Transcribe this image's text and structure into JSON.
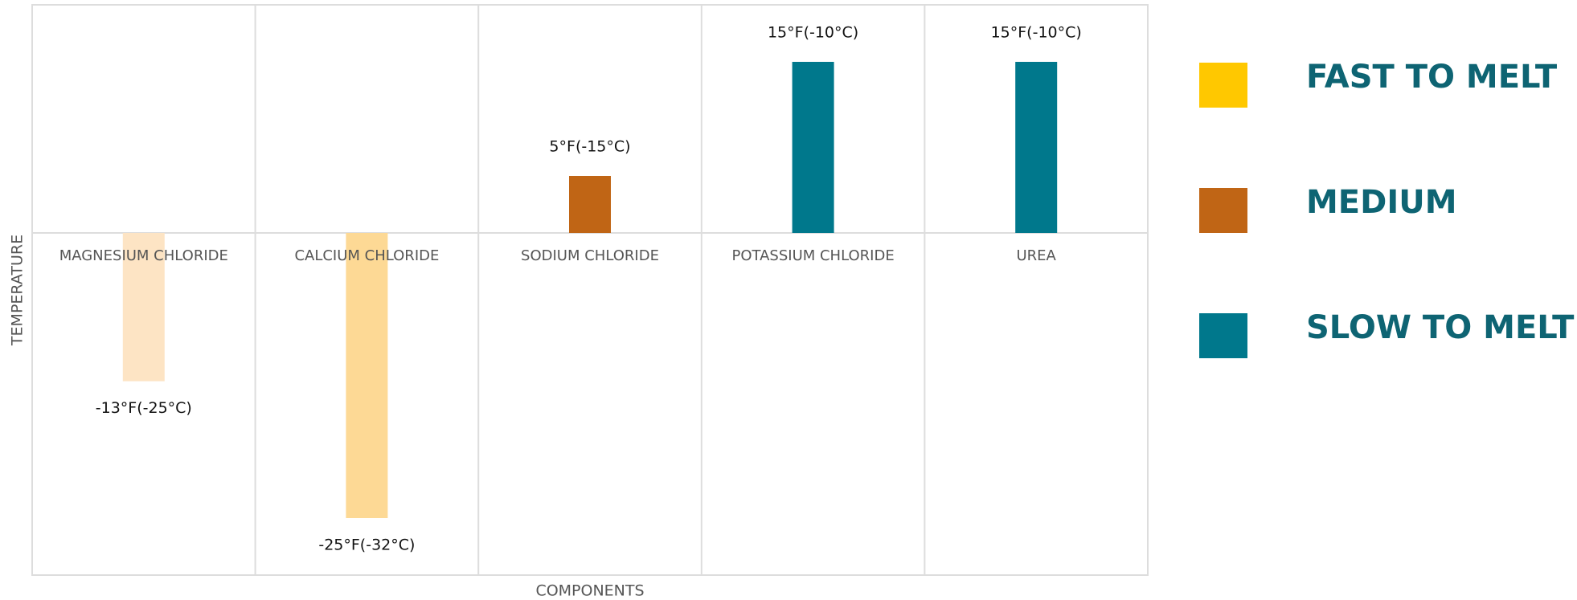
{
  "chart_data": {
    "type": "bar",
    "categories": [
      "MAGNESIUM CHLORIDE",
      "CALCIUM CHLORIDE",
      "SODIUM CHLORIDE",
      "POTASSIUM CHLORIDE",
      "UREA"
    ],
    "values": [
      -13,
      -25,
      5,
      15,
      15
    ],
    "value_labels": [
      "-13°F(-25°C)",
      "-25°F(-32°C)",
      "5°F(-15°C)",
      "15°F(-10°C)",
      "15°F(-10°C)"
    ],
    "colors": [
      "#fde4c4",
      "#fdd995",
      "#c06515",
      "#00788c",
      "#00788c"
    ],
    "ylim": [
      -30,
      20
    ],
    "x_label": "COMPONENTS",
    "y_label": "TEMPERATURE",
    "legend": [
      {
        "label": "FAST TO MELT",
        "color": "#ffc800"
      },
      {
        "label": "MEDIUM",
        "color": "#c06515"
      },
      {
        "label": "SLOW TO MELT",
        "color": "#00788c"
      }
    ]
  }
}
